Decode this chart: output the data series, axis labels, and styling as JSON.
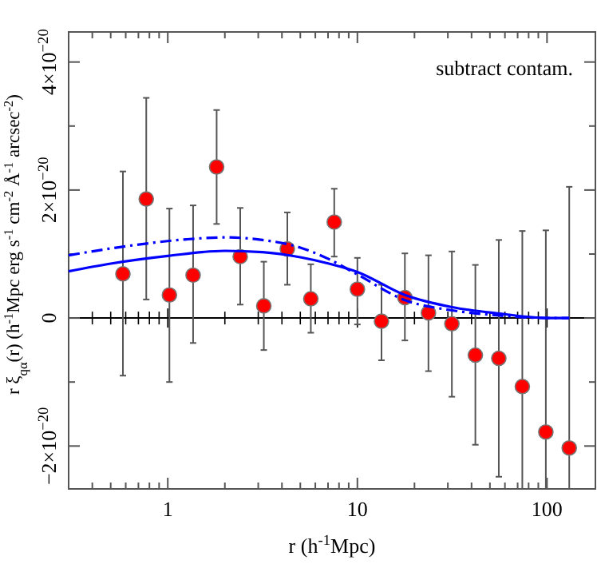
{
  "chart_data": {
    "type": "scatter",
    "xlabel": "r (h$^{-1}$Mpc)",
    "ylabel": "r ξ$_{qα}$(r) (h$^{-1}$Mpc erg s$^{-1}$ cm$^{-2}$ Å$^{-1}$ arcsec$^{-2}$)",
    "annotations": [
      "subtract contam."
    ],
    "log": "x",
    "xlim": [
      0.3,
      180
    ],
    "ylim": [
      -2.67e-20,
      4.47e-20
    ],
    "xticks": [
      {
        "value": 0.4,
        "label": null
      },
      {
        "value": 0.5,
        "label": null
      },
      {
        "value": 0.6,
        "label": null
      },
      {
        "value": 0.7,
        "label": null
      },
      {
        "value": 0.8,
        "label": null
      },
      {
        "value": 0.9,
        "label": null
      },
      1,
      {
        "value": 2,
        "label": null
      },
      {
        "value": 3,
        "label": null
      },
      {
        "value": 4,
        "label": null
      },
      {
        "value": 5,
        "label": null
      },
      {
        "value": 6,
        "label": null
      },
      {
        "value": 7,
        "label": null
      },
      {
        "value": 8,
        "label": null
      },
      {
        "value": 9,
        "label": null
      },
      10,
      {
        "value": 20,
        "label": null
      },
      {
        "value": 30,
        "label": null
      },
      {
        "value": 40,
        "label": null
      },
      {
        "value": 50,
        "label": null
      },
      {
        "value": 60,
        "label": null
      },
      {
        "value": 70,
        "label": null
      },
      {
        "value": 80,
        "label": null
      },
      {
        "value": 90,
        "label": null
      },
      100
    ],
    "yticks": [
      {
        "value": -2e-20,
        "label": "−2×10$^{−20}$"
      },
      {
        "value": -1e-20,
        "label": null
      },
      0,
      {
        "value": 1e-20,
        "label": null
      },
      {
        "value": 2e-20,
        "label": "2×10$^{−20}$"
      },
      {
        "value": 3e-20,
        "label": null
      },
      {
        "value": 4e-20,
        "label": "4×10$^{−20}$"
      }
    ],
    "ref_lines": [
      {
        "axis": "y",
        "value": 0,
        "color": "#000000"
      }
    ],
    "series": [
      {
        "color": "#ff0000",
        "marker": "circle",
        "x": [
          0.58,
          0.77,
          1.02,
          1.36,
          1.81,
          2.41,
          3.21,
          4.27,
          5.68,
          7.55,
          10.0,
          13.4,
          17.8,
          23.7,
          31.5,
          41.9,
          55.7,
          74.1,
          98.6,
          131
        ],
        "values": [
          6.9e-21,
          1.86e-20,
          3.6e-21,
          6.7e-21,
          2.36e-20,
          9.6e-21,
          1.9e-21,
          1.08e-20,
          3e-21,
          1.5e-20,
          4.5e-21,
          -5e-22,
          3.2e-21,
          8e-22,
          -9e-22,
          -5.8e-21,
          -6.3e-21,
          -1.07e-20,
          -1.78e-20,
          -2.03e-20
        ],
        "errors": [
          [
            -9e-21,
            2.29e-20
          ],
          [
            2.9e-21,
            3.44e-20
          ],
          [
            -1e-20,
            1.71e-20
          ],
          [
            -3.9e-21,
            1.76e-20
          ],
          [
            1.47e-20,
            3.25e-20
          ],
          [
            2.1e-21,
            1.72e-20
          ],
          [
            -5e-21,
            8.8e-21
          ],
          [
            5.2e-21,
            1.65e-20
          ],
          [
            -2.3e-21,
            8.4e-21
          ],
          [
            9.6e-21,
            2.02e-20
          ],
          [
            -1e-21,
            9.4e-21
          ],
          [
            -6.6e-21,
            5.2e-21
          ],
          [
            -3.5e-21,
            1.01e-20
          ],
          [
            -8.3e-21,
            9.8e-21
          ],
          [
            -1.23e-20,
            1.04e-20
          ],
          [
            -1.98e-20,
            8.3e-21
          ],
          [
            -2.48e-20,
            1.22e-20
          ],
          [
            -2.67e-20,
            1.36e-20
          ],
          [
            -2.67e-20,
            1.37e-20
          ],
          [
            -2.67e-20,
            2.05e-20
          ]
        ]
      },
      {
        "type": "line",
        "color": "#0000ff",
        "line_style": "solid",
        "marker": "none",
        "x": [
          0.3,
          0.5,
          1.0,
          2.0,
          3.16,
          5.0,
          7.08,
          10.0,
          17.8,
          31.6,
          56.2,
          100,
          131
        ],
        "values": [
          7.3e-21,
          8.5e-21,
          9.7e-21,
          1.05e-20,
          1.03e-20,
          9.5e-21,
          8.5e-21,
          7.2e-21,
          3.6e-21,
          1.7e-21,
          7e-22,
          0.0,
          0.0
        ]
      },
      {
        "type": "line",
        "color": "#0000ff",
        "line_style": "dashed",
        "marker": "none",
        "x": [
          0.3,
          0.63,
          1.26,
          2.0,
          3.16,
          5.0,
          7.08,
          10.0,
          17.8,
          31.6,
          56.2,
          100,
          131
        ],
        "values": [
          9.8e-21,
          1.13e-20,
          1.23e-20,
          1.26e-20,
          1.22e-20,
          1.1e-20,
          9.2e-21,
          6.8e-21,
          2.8e-21,
          1.2e-21,
          4e-22,
          0.0,
          0.0
        ]
      }
    ]
  }
}
